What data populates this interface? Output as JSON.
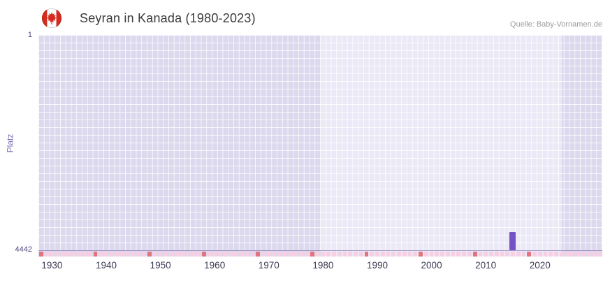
{
  "header": {
    "title": "Seyran in Kanada (1980-2023)",
    "source": "Quelle: Baby-Vornamen.de",
    "flag_icon": "canada-flag"
  },
  "chart_data": {
    "type": "bar",
    "title": "Seyran in Kanada (1980-2023)",
    "source": "Quelle: Baby-Vornamen.de",
    "ylabel": "Platz",
    "y_axis": {
      "top_label": "1",
      "bottom_label": "4442",
      "min": 1,
      "max": 4442,
      "inverted": true
    },
    "x_domain": [
      1927.5,
      2031.5
    ],
    "x_ticks": [
      "1930",
      "1940",
      "1950",
      "1960",
      "1970",
      "1980",
      "1990",
      "2000",
      "2010",
      "2020"
    ],
    "highlight_range": [
      1979.5,
      2024
    ],
    "bars": [
      {
        "year": 2015,
        "rank": 4070
      }
    ],
    "rug": {
      "start": 1928,
      "end": 2031,
      "accent_years": [
        1928,
        1938,
        1948,
        1958,
        1968,
        1978,
        1988,
        1998,
        2008,
        2018
      ]
    },
    "grid": true,
    "legend": "none",
    "colors": {
      "bar": "#7452c6",
      "plot_bg": "#dcd8ed",
      "plot_bg_highlight": "#ebe9f6",
      "rug_pink": "#f6cfe2",
      "rug_red": "#e2737f",
      "ylabel": "#7e6eb4"
    }
  }
}
